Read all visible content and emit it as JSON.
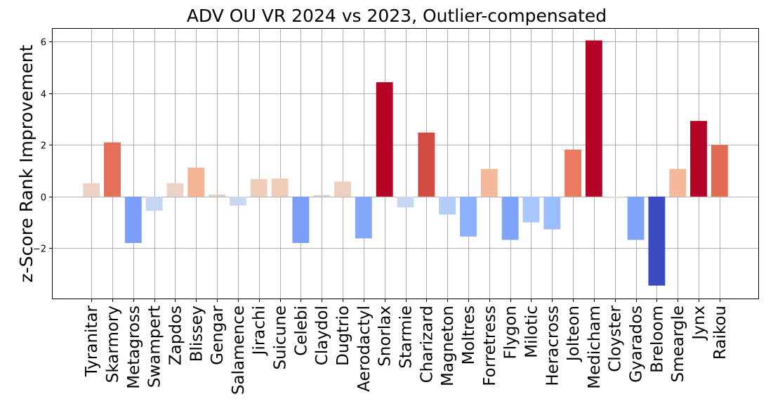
{
  "chart_data": {
    "type": "bar",
    "title": "ADV OU VR 2024 vs 2023, Outlier-compensated",
    "xlabel": "",
    "ylabel": "z-Score Rank Improvement",
    "ylim": [
      -3.95,
      6.5
    ],
    "yticks": [
      -2,
      0,
      2,
      4,
      6
    ],
    "ytick_labels": [
      "−2",
      "0",
      "2",
      "4",
      "6"
    ],
    "grid": true,
    "colormap": "coolwarm",
    "categories": [
      "Tyranitar",
      "Skarmory",
      "Metagross",
      "Swampert",
      "Zapdos",
      "Blissey",
      "Gengar",
      "Salamence",
      "Jirachi",
      "Suicune",
      "Celebi",
      "Claydol",
      "Dugtrio",
      "Aerodactyl",
      "Snorlax",
      "Starmie",
      "Charizard",
      "Magneton",
      "Moltres",
      "Forretress",
      "Flygon",
      "Milotic",
      "Heracross",
      "Jolteon",
      "Medicham",
      "Cloyster",
      "Gyarados",
      "Breloom",
      "Smeargle",
      "Jynx",
      "Raikou"
    ],
    "values": [
      0.52,
      2.1,
      -1.8,
      -0.55,
      0.52,
      1.12,
      0.08,
      -0.35,
      0.68,
      0.7,
      -1.8,
      0.06,
      0.58,
      -1.62,
      4.43,
      -0.42,
      2.48,
      -0.7,
      -1.55,
      1.07,
      -1.68,
      -1.0,
      -1.27,
      1.82,
      6.05,
      -0.06,
      -1.68,
      -3.45,
      1.07,
      2.93,
      2.0
    ],
    "colors": [
      "#ecd3c5",
      "#e57058",
      "#7b9ff9",
      "#c5d6f2",
      "#ecd3c5",
      "#f4b496",
      "#ded0c5",
      "#cad8ef",
      "#f0cdbb",
      "#f1ccb8",
      "#7b9ff9",
      "#dfd0c4",
      "#eed0c0",
      "#84a7fc",
      "#b40426",
      "#c7d7f0",
      "#d24b40",
      "#b5cdfa",
      "#8caffe",
      "#f5b89b",
      "#81a4fb",
      "#a9c6fd",
      "#9bbcff",
      "#ea7b60",
      "#b40426",
      "#dbdcde",
      "#81a4fb",
      "#3b4cc0",
      "#f5b89b",
      "#b40426",
      "#e26952"
    ]
  }
}
